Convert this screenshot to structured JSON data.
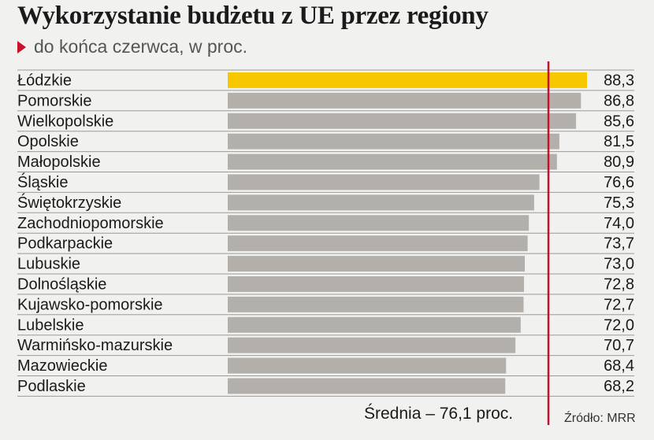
{
  "title": "Wykorzystanie budżetu z UE  przez regiony",
  "subtitle": "do końca czerwca, w proc.",
  "source": "Źródło: MRR",
  "average_label": "Średnia – 76,1 proc.",
  "colors": {
    "highlight_bar": "#f7c800",
    "bar": "#b3b0ab",
    "average_line": "#c8102e",
    "marker": "#c8102e"
  },
  "chart_data": {
    "type": "bar",
    "orientation": "horizontal",
    "title": "Wykorzystanie budżetu z UE  przez regiony",
    "subtitle": "do końca czerwca, w proc.",
    "categories": [
      "Łódzkie",
      "Pomorskie",
      "Wielkopolskie",
      "Opolskie",
      "Małopolskie",
      "Śląskie",
      "Świętokrzyskie",
      "Zachodniopomorskie",
      "Podkarpackie",
      "Lubuskie",
      "Dolnośląskie",
      "Kujawsko-pomorskie",
      "Lubelskie",
      "Warmińsko-mazurskie",
      "Mazowieckie",
      "Podlaskie"
    ],
    "values": [
      88.3,
      86.8,
      85.6,
      81.5,
      80.9,
      76.6,
      75.3,
      74.0,
      73.7,
      73.0,
      72.8,
      72.7,
      72.0,
      70.7,
      68.4,
      68.2
    ],
    "value_labels": [
      "88,3",
      "86,8",
      "85,6",
      "81,5",
      "80,9",
      "76,6",
      "75,3",
      "74,0",
      "73,7",
      "73,0",
      "72,8",
      "72,7",
      "72,0",
      "70,7",
      "68,4",
      "68,2"
    ],
    "highlighted_category": "Łódzkie",
    "average": 76.1,
    "average_label": "Średnia – 76,1 proc.",
    "grid": false,
    "legend": "none"
  }
}
